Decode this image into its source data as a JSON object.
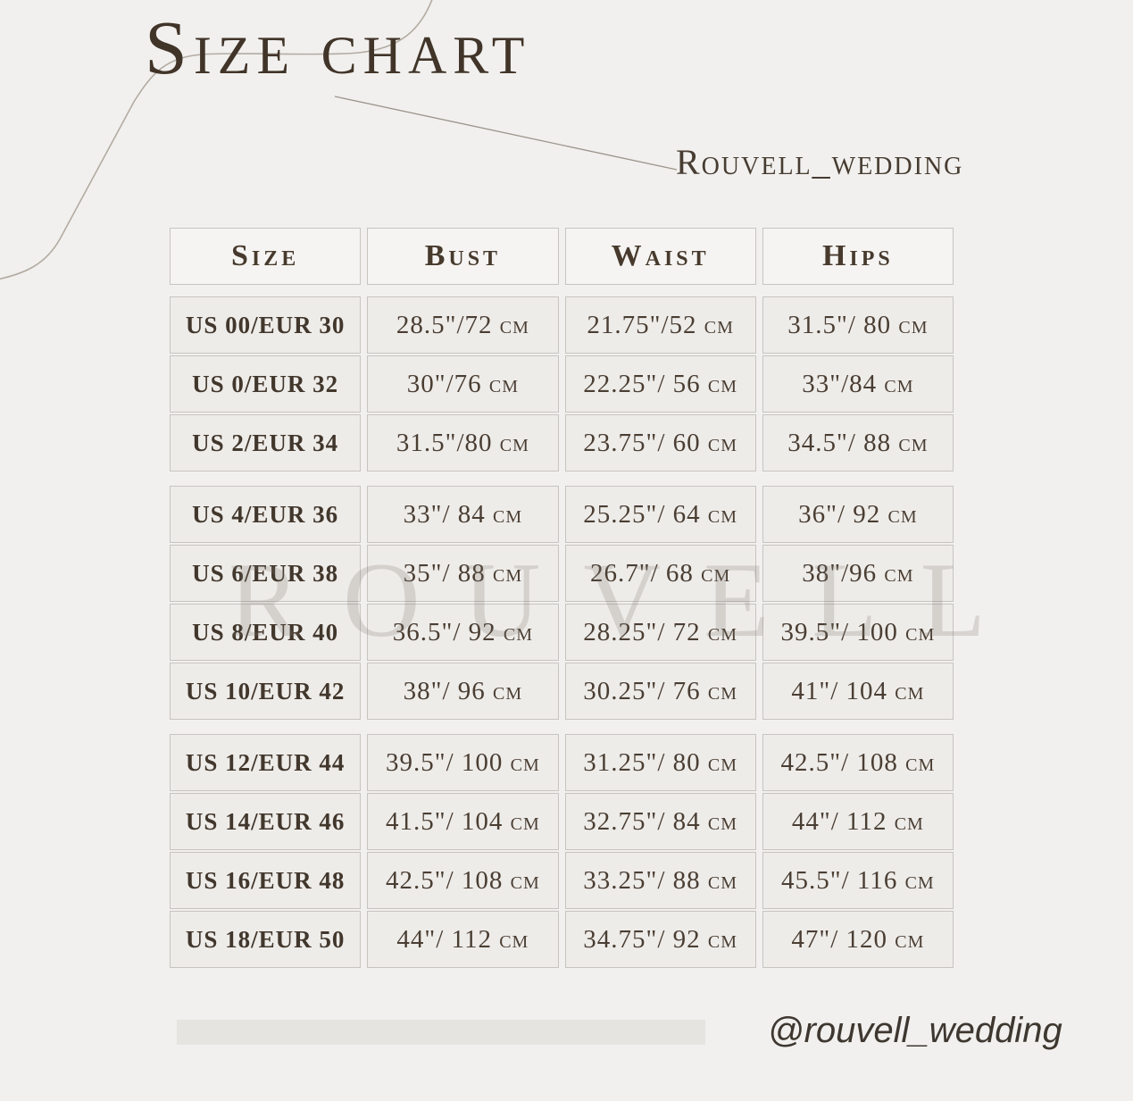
{
  "header": {
    "title": "Size chart",
    "credit": "Rouvell_wedding"
  },
  "table": {
    "columns": [
      "Size",
      "Bust",
      "Waist",
      "Hips"
    ],
    "groups": [
      [
        {
          "size": "US 00/EUR 30",
          "bust": "28.5\"/72 cm",
          "waist": "21.75\"/52 cm",
          "hips": "31.5\"/ 80 cm"
        },
        {
          "size": "US 0/EUR 32",
          "bust": "30\"/76 cm",
          "waist": "22.25\"/ 56 cm",
          "hips": "33\"/84 cm"
        },
        {
          "size": "US 2/EUR 34",
          "bust": "31.5\"/80 cm",
          "waist": "23.75\"/ 60 cm",
          "hips": "34.5\"/ 88 cm"
        }
      ],
      [
        {
          "size": "US 4/EUR 36",
          "bust": "33\"/ 84 cm",
          "waist": "25.25\"/ 64 cm",
          "hips": "36\"/ 92 cm"
        },
        {
          "size": "US 6/EUR 38",
          "bust": "35\"/ 88 cm",
          "waist": "26.7\"/ 68 cm",
          "hips": "38\"/96 cm"
        },
        {
          "size": "US 8/EUR 40",
          "bust": "36.5\"/ 92 cm",
          "waist": "28.25\"/ 72 cm",
          "hips": "39.5\"/ 100 cm"
        },
        {
          "size": "US 10/EUR 42",
          "bust": "38\"/ 96 cm",
          "waist": "30.25\"/ 76 cm",
          "hips": "41\"/ 104 cm"
        }
      ],
      [
        {
          "size": "US 12/EUR 44",
          "bust": "39.5\"/ 100 cm",
          "waist": "31.25\"/ 80 cm",
          "hips": "42.5\"/ 108 cm"
        },
        {
          "size": "US 14/EUR 46",
          "bust": "41.5\"/ 104 cm",
          "waist": "32.75\"/ 84 cm",
          "hips": "44\"/ 112 cm"
        },
        {
          "size": "US 16/EUR 48",
          "bust": "42.5\"/ 108 cm",
          "waist": "33.25\"/ 88 cm",
          "hips": "45.5\"/ 116 cm"
        },
        {
          "size": "US 18/EUR 50",
          "bust": "44\"/ 112 cm",
          "waist": "34.75\"/ 92 cm",
          "hips": "47\"/ 120 cm"
        }
      ]
    ]
  },
  "watermark": {
    "text": "ROUVELL"
  },
  "footer": {
    "handle": "@rouvell_wedding"
  },
  "colors": {
    "page_bg": "#f1f0ee",
    "cell_bg": "#eeece9",
    "header_cell_bg": "#f5f4f2",
    "cell_border": "#c7c4c0",
    "title_text": "#413428",
    "body_text": "#4a3e33",
    "decor_line": "#b3aba2",
    "footer_bar": "#e6e4e0",
    "watermark": "#7d756c"
  }
}
